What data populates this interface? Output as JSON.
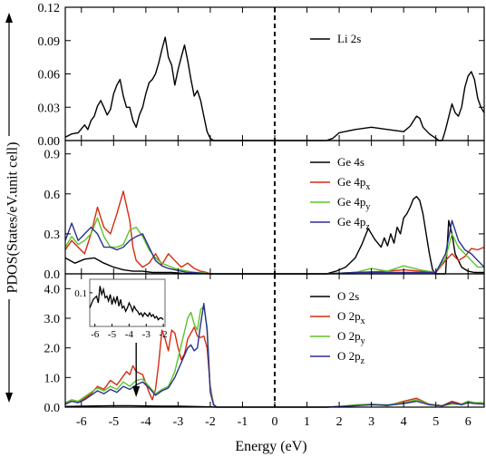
{
  "chart_data": [
    {
      "type": "line",
      "ylim": [
        0,
        0.12
      ],
      "yticks": [
        "0.00",
        "0.03",
        "0.06",
        "0.09",
        "0.12"
      ],
      "ytick_values": [
        0,
        0.03,
        0.06,
        0.09,
        0.12
      ],
      "series": [
        {
          "name": "Li 2s",
          "legend_main": "Li 2s",
          "legend_sub": "",
          "color": "#000000",
          "x": [
            -6.5,
            -6.3,
            -6.1,
            -5.9,
            -5.8,
            -5.7,
            -5.6,
            -5.5,
            -5.4,
            -5.3,
            -5.2,
            -5.1,
            -5.0,
            -4.9,
            -4.8,
            -4.7,
            -4.6,
            -4.5,
            -4.4,
            -4.3,
            -4.2,
            -4.1,
            -4.0,
            -3.9,
            -3.8,
            -3.7,
            -3.6,
            -3.5,
            -3.4,
            -3.3,
            -3.2,
            -3.1,
            -3.0,
            -2.9,
            -2.8,
            -2.7,
            -2.6,
            -2.5,
            -2.4,
            -2.3,
            -2.2,
            -2.1,
            -2.0,
            -1.9,
            -1.8,
            1.6,
            1.8,
            2.0,
            2.5,
            3.0,
            3.5,
            4.0,
            4.2,
            4.4,
            4.5,
            4.6,
            4.8,
            5.0,
            5.1,
            5.2,
            5.3,
            5.5,
            5.6,
            5.7,
            5.8,
            5.9,
            6.0,
            6.1,
            6.2,
            6.3,
            6.4,
            6.5
          ],
          "y": [
            0.003,
            0.006,
            0.007,
            0.014,
            0.01,
            0.018,
            0.022,
            0.031,
            0.036,
            0.03,
            0.023,
            0.028,
            0.042,
            0.05,
            0.055,
            0.04,
            0.03,
            0.03,
            0.018,
            0.012,
            0.023,
            0.03,
            0.042,
            0.052,
            0.055,
            0.06,
            0.07,
            0.082,
            0.093,
            0.075,
            0.068,
            0.05,
            0.064,
            0.075,
            0.086,
            0.072,
            0.055,
            0.04,
            0.045,
            0.036,
            0.022,
            0.008,
            0.002,
            0,
            0,
            0,
            0.002,
            0.007,
            0.01,
            0.012,
            0.01,
            0.008,
            0.013,
            0.022,
            0.02,
            0.012,
            0.006,
            0.002,
            0,
            0,
            0.01,
            0.033,
            0.025,
            0.022,
            0.03,
            0.048,
            0.058,
            0.062,
            0.055,
            0.038,
            0.03,
            0.025
          ]
        }
      ]
    },
    {
      "type": "line",
      "ylim": [
        0,
        1.0
      ],
      "yticks": [
        "0.0",
        "0.3",
        "0.6",
        "0.9"
      ],
      "ytick_values": [
        0,
        0.3,
        0.6,
        0.9
      ],
      "series": [
        {
          "name": "Ge 4s",
          "legend_main": "Ge 4s",
          "legend_sub": "",
          "color": "#000000",
          "x": [
            -6.5,
            -6.2,
            -5.9,
            -5.6,
            -5.3,
            -5.0,
            -4.7,
            -4.4,
            -4.1,
            -3.8,
            -3.5,
            -3.2,
            -2.9,
            -2.6,
            -2.3,
            -2.0,
            1.6,
            1.9,
            2.2,
            2.5,
            2.7,
            2.9,
            3.1,
            3.3,
            3.4,
            3.5,
            3.6,
            3.7,
            3.8,
            3.9,
            4.0,
            4.1,
            4.2,
            4.3,
            4.4,
            4.5,
            4.6,
            4.7,
            4.8,
            4.9,
            5.0,
            5.1,
            5.2,
            5.3,
            5.4,
            5.5,
            5.6,
            5.8,
            6.0,
            6.2,
            6.4,
            6.5
          ],
          "y": [
            0.12,
            0.08,
            0.11,
            0.12,
            0.08,
            0.05,
            0.03,
            0.02,
            0.02,
            0.01,
            0.01,
            0.01,
            0.005,
            0.003,
            0.002,
            0,
            0,
            0.02,
            0.05,
            0.12,
            0.22,
            0.34,
            0.26,
            0.2,
            0.27,
            0.21,
            0.3,
            0.23,
            0.35,
            0.3,
            0.42,
            0.45,
            0.5,
            0.56,
            0.58,
            0.55,
            0.45,
            0.3,
            0.15,
            0.03,
            0,
            0,
            0,
            0,
            0.4,
            0.3,
            0.15,
            0.05,
            0.02,
            0.01,
            0.01,
            0.01
          ]
        },
        {
          "name": "Ge 4px",
          "legend_main": "Ge 4p",
          "legend_sub": "x",
          "color": "#d62b10",
          "x": [
            -6.5,
            -6.3,
            -6.1,
            -5.9,
            -5.7,
            -5.5,
            -5.3,
            -5.1,
            -4.9,
            -4.7,
            -4.5,
            -4.4,
            -4.3,
            -4.1,
            -3.9,
            -3.7,
            -3.5,
            -3.3,
            -3.1,
            -2.9,
            -2.7,
            -2.5,
            -2.3,
            -2.1,
            -2.0,
            1.6,
            2.5,
            3.5,
            4.0,
            4.5,
            5.0,
            5.3,
            5.5,
            5.7,
            5.9,
            6.1,
            6.3,
            6.5
          ],
          "y": [
            0.18,
            0.25,
            0.2,
            0.15,
            0.3,
            0.5,
            0.35,
            0.3,
            0.45,
            0.62,
            0.4,
            0.2,
            0.1,
            0.05,
            0.08,
            0.15,
            0.07,
            0.15,
            0.1,
            0.05,
            0.08,
            0.04,
            0.02,
            0.01,
            0,
            0,
            0.01,
            0.02,
            0.03,
            0.02,
            0.01,
            0.1,
            0.15,
            0.1,
            0.13,
            0.19,
            0.18,
            0.2
          ]
        },
        {
          "name": "Ge 4py",
          "legend_main": "Ge 4p",
          "legend_sub": "y",
          "color": "#5cc326",
          "x": [
            -6.5,
            -6.3,
            -6.1,
            -5.9,
            -5.7,
            -5.5,
            -5.3,
            -5.1,
            -4.9,
            -4.7,
            -4.5,
            -4.3,
            -4.1,
            -3.9,
            -3.7,
            -3.5,
            -3.3,
            -3.1,
            -2.9,
            -2.7,
            -2.5,
            -2.3,
            -2.1,
            -2.0,
            1.6,
            2.5,
            3.0,
            3.5,
            4.0,
            4.5,
            5.0,
            5.3,
            5.5,
            5.7,
            5.9,
            6.1,
            6.3,
            6.5
          ],
          "y": [
            0.2,
            0.28,
            0.22,
            0.25,
            0.3,
            0.42,
            0.28,
            0.2,
            0.2,
            0.22,
            0.33,
            0.35,
            0.28,
            0.18,
            0.12,
            0.08,
            0.06,
            0.04,
            0.03,
            0.02,
            0.01,
            0.01,
            0.005,
            0,
            0,
            0.01,
            0.04,
            0.02,
            0.06,
            0.03,
            0.01,
            0.12,
            0.3,
            0.2,
            0.15,
            0.1,
            0.05,
            0.05
          ]
        },
        {
          "name": "Ge 4pz",
          "legend_main": "Ge 4p",
          "legend_sub": "z",
          "color": "#2b2f8f",
          "x": [
            -6.5,
            -6.3,
            -6.1,
            -5.9,
            -5.7,
            -5.5,
            -5.3,
            -5.1,
            -4.9,
            -4.7,
            -4.5,
            -4.3,
            -4.1,
            -3.9,
            -3.7,
            -3.5,
            -3.3,
            -3.1,
            -2.9,
            -2.7,
            -2.5,
            -2.3,
            -2.1,
            -2.0,
            1.6,
            2.5,
            3.5,
            4.5,
            5.0,
            5.3,
            5.5,
            5.7,
            5.9,
            6.1,
            6.3,
            6.5
          ],
          "y": [
            0.25,
            0.38,
            0.25,
            0.3,
            0.35,
            0.3,
            0.2,
            0.2,
            0.18,
            0.2,
            0.25,
            0.28,
            0.3,
            0.2,
            0.1,
            0.06,
            0.04,
            0.03,
            0.02,
            0.01,
            0.01,
            0.005,
            0.002,
            0,
            0,
            0.01,
            0.01,
            0.01,
            0.01,
            0.15,
            0.4,
            0.25,
            0.18,
            0.15,
            0.1,
            0.05
          ]
        }
      ]
    },
    {
      "type": "line",
      "ylim": [
        0,
        4.5
      ],
      "yticks": [
        "0.0",
        "1.0",
        "2.0",
        "3.0",
        "4.0"
      ],
      "ytick_values": [
        0,
        1,
        2,
        3,
        4
      ],
      "series": [
        {
          "name": "O 2s",
          "legend_main": "O 2s",
          "legend_sub": "",
          "color": "#000000",
          "x": [
            -6.5,
            -6.0,
            -5.5,
            -5.0,
            -4.5,
            -4.0,
            -3.5,
            -3.0,
            -2.5,
            -2.0,
            -1.8
          ],
          "y": [
            0.02,
            0.03,
            0.04,
            0.05,
            0.05,
            0.04,
            0.03,
            0.03,
            0.02,
            0.01,
            0
          ]
        },
        {
          "name": "O 2px",
          "legend_main": "O 2p",
          "legend_sub": "x",
          "color": "#d62b10",
          "x": [
            -6.5,
            -6.3,
            -6.1,
            -5.9,
            -5.7,
            -5.5,
            -5.3,
            -5.1,
            -4.9,
            -4.7,
            -4.6,
            -4.5,
            -4.4,
            -4.3,
            -4.2,
            -4.1,
            -4.0,
            -3.9,
            -3.8,
            -3.7,
            -3.6,
            -3.5,
            -3.4,
            -3.3,
            -3.2,
            -3.1,
            -3.0,
            -2.9,
            -2.8,
            -2.7,
            -2.6,
            -2.5,
            -2.4,
            -2.3,
            -2.2,
            -2.1,
            -2.0,
            -1.9,
            -1.8,
            1.6,
            2.0,
            2.5,
            3.0,
            3.5,
            4.0,
            4.4,
            4.8,
            5.2,
            5.5,
            5.8,
            6.0,
            6.2,
            6.5
          ],
          "y": [
            0.1,
            0.2,
            0.15,
            0.3,
            0.45,
            0.7,
            0.6,
            0.9,
            0.75,
            1.05,
            1.2,
            1.1,
            1.4,
            1.2,
            1.15,
            1.1,
            0.8,
            0.5,
            0.25,
            0.6,
            1.5,
            2.6,
            2.3,
            1.9,
            2.6,
            2.5,
            2.0,
            1.6,
            1.8,
            2.3,
            2.5,
            2.7,
            2.4,
            2.35,
            2.4,
            2.0,
            0.7,
            0.1,
            0,
            0,
            0.02,
            0.05,
            0.1,
            0.05,
            0.2,
            0.3,
            0.1,
            0.05,
            0.2,
            0.1,
            0.2,
            0.15,
            0.1
          ]
        },
        {
          "name": "O 2py",
          "legend_main": "O 2p",
          "legend_sub": "y",
          "color": "#5cc326",
          "x": [
            -6.5,
            -6.3,
            -6.1,
            -5.9,
            -5.7,
            -5.5,
            -5.3,
            -5.1,
            -4.9,
            -4.7,
            -4.5,
            -4.3,
            -4.1,
            -3.9,
            -3.7,
            -3.5,
            -3.3,
            -3.1,
            -2.9,
            -2.7,
            -2.6,
            -2.5,
            -2.4,
            -2.3,
            -2.2,
            -2.1,
            -2.0,
            -1.9,
            -1.8,
            1.6,
            2.0,
            2.5,
            3.0,
            3.5,
            4.0,
            4.4,
            4.8,
            5.2,
            5.5,
            5.8,
            6.0,
            6.2,
            6.5
          ],
          "y": [
            0.15,
            0.25,
            0.2,
            0.35,
            0.5,
            0.65,
            0.55,
            0.7,
            0.6,
            0.85,
            0.7,
            0.9,
            0.95,
            0.7,
            0.45,
            0.6,
            0.7,
            1.2,
            2.1,
            3.0,
            3.2,
            2.8,
            2.6,
            3.3,
            3.4,
            2.7,
            0.6,
            0.1,
            0,
            0,
            0.02,
            0.08,
            0.1,
            0.08,
            0.15,
            0.25,
            0.1,
            0.05,
            0.1,
            0.1,
            0.2,
            0.15,
            0.15
          ]
        },
        {
          "name": "O 2pz",
          "legend_main": "O 2p",
          "legend_sub": "z",
          "color": "#2b2f8f",
          "x": [
            -6.5,
            -6.3,
            -6.1,
            -5.9,
            -5.7,
            -5.5,
            -5.3,
            -5.1,
            -4.9,
            -4.7,
            -4.5,
            -4.3,
            -4.1,
            -3.9,
            -3.7,
            -3.5,
            -3.3,
            -3.1,
            -2.9,
            -2.7,
            -2.6,
            -2.5,
            -2.4,
            -2.3,
            -2.2,
            -2.1,
            -2.0,
            -1.9,
            -1.8,
            1.6,
            2.0,
            2.5,
            3.0,
            3.5,
            4.0,
            4.4,
            4.8,
            5.2,
            5.5,
            5.8,
            6.0,
            6.2,
            6.5
          ],
          "y": [
            0.1,
            0.2,
            0.15,
            0.25,
            0.4,
            0.55,
            0.45,
            0.6,
            0.5,
            0.7,
            0.6,
            0.75,
            0.85,
            0.65,
            0.4,
            0.55,
            0.65,
            1.0,
            1.5,
            2.0,
            2.1,
            1.9,
            2.0,
            2.8,
            3.5,
            2.6,
            0.5,
            0.08,
            0,
            0,
            0.02,
            0.05,
            0.08,
            0.06,
            0.12,
            0.2,
            0.08,
            0.04,
            0.15,
            0.08,
            0.15,
            0.12,
            0.1
          ]
        }
      ]
    }
  ],
  "inset": {
    "xlim": [
      -6.3,
      -1.9
    ],
    "ylim": [
      0,
      0.14
    ],
    "xticks": [
      "-6",
      "-5",
      "-4",
      "-3",
      "-2"
    ],
    "xtick_values": [
      -6,
      -5,
      -4,
      -3,
      -2
    ],
    "yticks": [
      "0.1"
    ],
    "ytick_values": [
      0.1
    ],
    "x": [
      -6.3,
      -6.1,
      -5.9,
      -5.8,
      -5.7,
      -5.6,
      -5.5,
      -5.4,
      -5.3,
      -5.2,
      -5.1,
      -5.0,
      -4.9,
      -4.8,
      -4.7,
      -4.6,
      -4.5,
      -4.4,
      -4.3,
      -4.2,
      -4.1,
      -4.0,
      -3.9,
      -3.8,
      -3.7,
      -3.6,
      -3.5,
      -3.4,
      -3.3,
      -3.2,
      -3.1,
      -3.0,
      -2.9,
      -2.8,
      -2.7,
      -2.6,
      -2.5,
      -2.4,
      -2.3,
      -2.2,
      -2.1,
      -2.0
    ],
    "y": [
      0.055,
      0.08,
      0.09,
      0.07,
      0.12,
      0.095,
      0.11,
      0.085,
      0.09,
      0.075,
      0.095,
      0.065,
      0.085,
      0.07,
      0.09,
      0.06,
      0.08,
      0.055,
      0.06,
      0.045,
      0.055,
      0.07,
      0.06,
      0.045,
      0.06,
      0.05,
      0.045,
      0.035,
      0.04,
      0.03,
      0.04,
      0.035,
      0.03,
      0.04,
      0.03,
      0.035,
      0.025,
      0.03,
      0.02,
      0.025,
      0.025,
      0.02
    ],
    "arrow_at": -4.3
  },
  "x_axis": {
    "label": "Energy (eV)",
    "xlim": [
      -6.5,
      6.5
    ],
    "ticks": [
      "-6",
      "-5",
      "-4",
      "-3",
      "-2",
      "-1",
      "0",
      "1",
      "2",
      "3",
      "4",
      "5",
      "6"
    ],
    "tick_values": [
      -6,
      -5,
      -4,
      -3,
      -2,
      -1,
      0,
      1,
      2,
      3,
      4,
      5,
      6
    ]
  },
  "y_axis": {
    "label": "PDOS(States/eV.unit cell)"
  },
  "fermi_level": 0
}
